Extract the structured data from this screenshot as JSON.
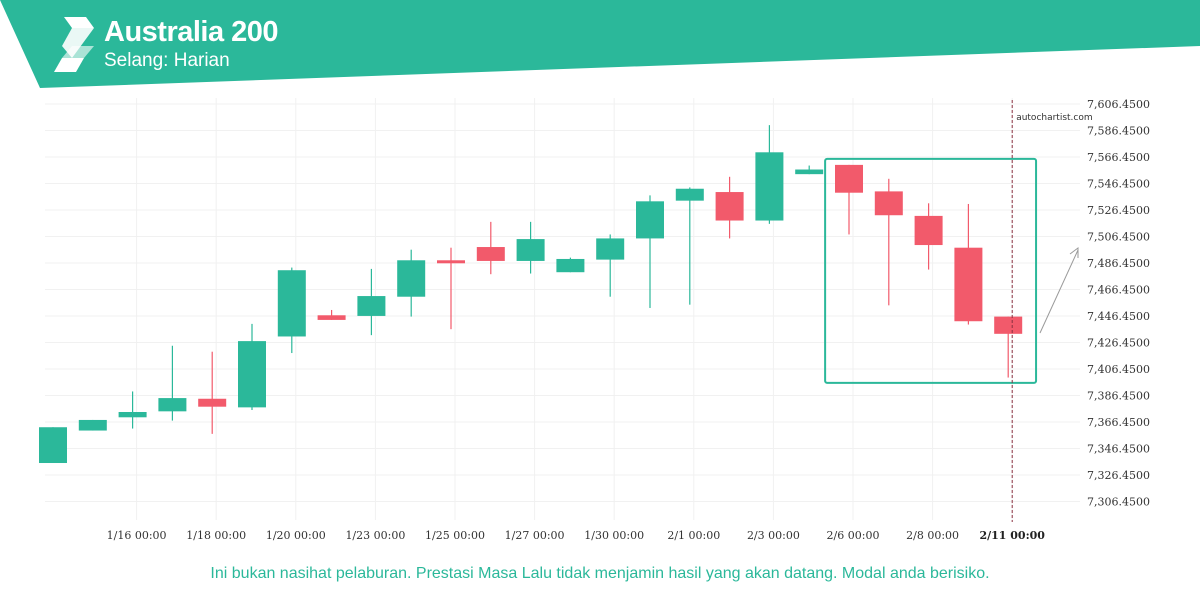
{
  "header": {
    "title": "Australia 200",
    "subtitle": "Selang: Harian"
  },
  "colors": {
    "brand": "#2bb89a",
    "bull": "#2bb89a",
    "bear": "#f25a6b"
  },
  "watermark": "autochartist.com",
  "disclaimer": "Ini bukan nasihat pelaburan. Prestasi Masa Lalu tidak menjamin hasil yang akan datang. Modal anda berisiko.",
  "chart_data": {
    "type": "candlestick",
    "title": "Australia 200",
    "ylim": [
      7286.45,
      7616.45
    ],
    "y_ticks": [
      "7,606.4500",
      "7,586.4500",
      "7,566.4500",
      "7,546.4500",
      "7,526.4500",
      "7,506.4500",
      "7,486.4500",
      "7,466.4500",
      "7,446.4500",
      "7,426.4500",
      "7,406.4500",
      "7,386.4500",
      "7,366.4500",
      "7,346.4500",
      "7,326.4500",
      "7,306.4500"
    ],
    "x_ticks": [
      "1/16 00:00",
      "1/18 00:00",
      "1/20 00:00",
      "1/23 00:00",
      "1/25 00:00",
      "1/27 00:00",
      "1/30 00:00",
      "2/1 00:00",
      "2/3 00:00",
      "2/6 00:00",
      "2/8 00:00",
      "2/11 00:00"
    ],
    "grid": true,
    "candles": [
      {
        "open": 7335.5,
        "high": 7362.5,
        "low": 7335.5,
        "close": 7362.5
      },
      {
        "open": 7360.0,
        "high": 7368.0,
        "low": 7360.0,
        "close": 7368.0
      },
      {
        "open": 7370.0,
        "high": 7389.5,
        "low": 7361.5,
        "close": 7374.0
      },
      {
        "open": 7374.5,
        "high": 7424.0,
        "low": 7367.5,
        "close": 7384.5
      },
      {
        "open": 7384.0,
        "high": 7419.5,
        "low": 7357.5,
        "close": 7378.0
      },
      {
        "open": 7377.5,
        "high": 7440.5,
        "low": 7375.5,
        "close": 7427.5
      },
      {
        "open": 7431.0,
        "high": 7483.0,
        "low": 7418.5,
        "close": 7481.0
      },
      {
        "open": 7447.0,
        "high": 7451.0,
        "low": 7443.5,
        "close": 7443.5
      },
      {
        "open": 7446.5,
        "high": 7482.0,
        "low": 7432.0,
        "close": 7461.5
      },
      {
        "open": 7461.0,
        "high": 7496.5,
        "low": 7446.0,
        "close": 7488.5
      },
      {
        "open": 7488.5,
        "high": 7498.0,
        "low": 7436.5,
        "close": 7487.0
      },
      {
        "open": 7498.5,
        "high": 7517.5,
        "low": 7478.0,
        "close": 7488.0
      },
      {
        "open": 7488.0,
        "high": 7517.5,
        "low": 7478.5,
        "close": 7504.5
      },
      {
        "open": 7479.5,
        "high": 7490.5,
        "low": 7479.5,
        "close": 7489.5
      },
      {
        "open": 7489.0,
        "high": 7508.0,
        "low": 7461.0,
        "close": 7505.0
      },
      {
        "open": 7505.0,
        "high": 7537.5,
        "low": 7452.5,
        "close": 7533.0
      },
      {
        "open": 7533.5,
        "high": 7543.5,
        "low": 7455.0,
        "close": 7542.5
      },
      {
        "open": 7540.0,
        "high": 7551.5,
        "low": 7505.0,
        "close": 7518.5
      },
      {
        "open": 7518.5,
        "high": 7590.5,
        "low": 7516.0,
        "close": 7570.0
      },
      {
        "open": 7553.5,
        "high": 7560.0,
        "low": 7553.5,
        "close": 7557.0
      },
      {
        "open": 7560.5,
        "high": 7560.5,
        "low": 7508.0,
        "close": 7539.5
      },
      {
        "open": 7540.5,
        "high": 7550.0,
        "low": 7454.5,
        "close": 7522.5
      },
      {
        "open": 7522.0,
        "high": 7531.5,
        "low": 7481.5,
        "close": 7500.0
      },
      {
        "open": 7498.0,
        "high": 7531.0,
        "low": 7440.0,
        "close": 7442.5
      },
      {
        "open": 7446.0,
        "high": 7446.0,
        "low": 7400.0,
        "close": 7433.0
      }
    ],
    "pattern_box": {
      "x_start_index": 19.4,
      "x_end_index": 24.7,
      "high": 7565.0,
      "low": 7396.0
    },
    "current_time_label": "2/11 00:00"
  }
}
